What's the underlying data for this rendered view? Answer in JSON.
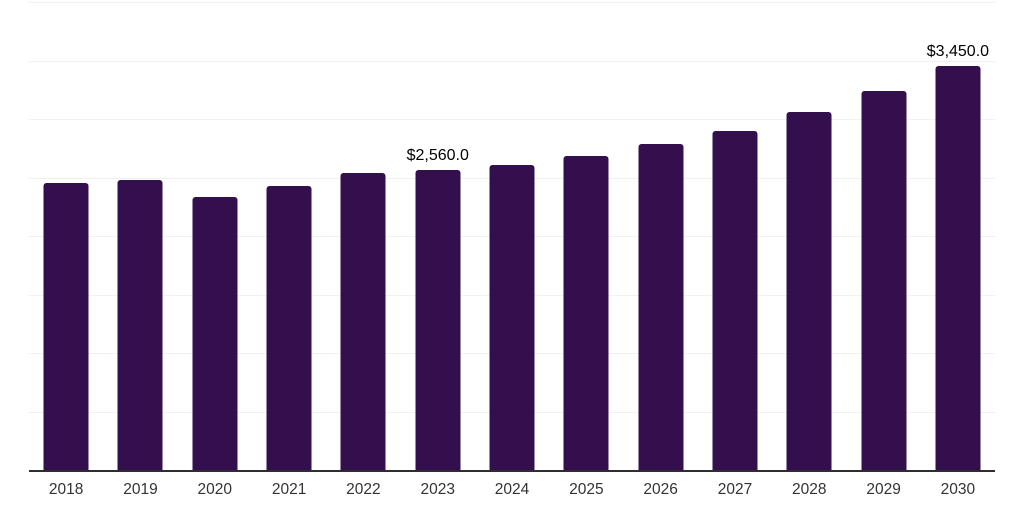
{
  "chart_data": {
    "type": "bar",
    "title": "",
    "xlabel": "",
    "ylabel": "",
    "categories": [
      "2018",
      "2019",
      "2020",
      "2021",
      "2022",
      "2023",
      "2024",
      "2025",
      "2026",
      "2027",
      "2028",
      "2029",
      "2030"
    ],
    "values": [
      2450,
      2480,
      2330,
      2430,
      2540,
      2560,
      2610,
      2680,
      2790,
      2900,
      3060,
      3240,
      3450
    ],
    "labeled_points": [
      {
        "category": "2023",
        "label": "$2,560.0"
      },
      {
        "category": "2030",
        "label": "$3,450.0"
      }
    ],
    "ylim": [
      0,
      4000
    ],
    "gridline_interval": 500,
    "grid": "horizontal-only",
    "legend_position": "none",
    "y_tick_labels_visible": false,
    "bar_color": "#33104d",
    "gridline_color": "#f1f1f1",
    "axis_line_color": "#2e2e2e",
    "x_tick_label_color": "#333333",
    "data_label_color": "#000000"
  }
}
